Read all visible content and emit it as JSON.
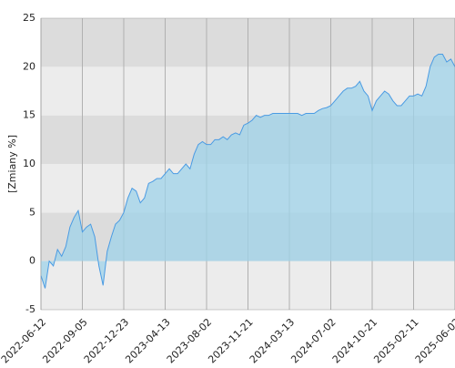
{
  "chart_data": {
    "type": "area",
    "y_label": "[Zmiany %]",
    "categories": [
      "2022-06-12",
      null,
      null,
      null,
      null,
      null,
      null,
      null,
      null,
      null,
      "2022-09-05",
      null,
      null,
      null,
      null,
      null,
      null,
      null,
      null,
      null,
      "2022-12-23",
      null,
      null,
      null,
      null,
      null,
      null,
      null,
      null,
      null,
      "2023-04-13",
      null,
      null,
      null,
      null,
      null,
      null,
      null,
      null,
      null,
      "2023-08-02",
      null,
      null,
      null,
      null,
      null,
      null,
      null,
      null,
      null,
      "2023-11-21",
      null,
      null,
      null,
      null,
      null,
      null,
      null,
      null,
      null,
      "2024-03-13",
      null,
      null,
      null,
      null,
      null,
      null,
      null,
      null,
      null,
      "2024-07-02",
      null,
      null,
      null,
      null,
      null,
      null,
      null,
      null,
      null,
      "2024-10-21",
      null,
      null,
      null,
      null,
      null,
      null,
      null,
      null,
      null,
      "2025-02-11",
      null,
      null,
      null,
      null,
      null,
      null,
      null,
      null,
      null,
      "2025-06-02"
    ],
    "values": [
      -1.5,
      -2.8,
      0,
      -0.5,
      1.2,
      0.5,
      1.5,
      3.5,
      4.5,
      5.2,
      3,
      3.5,
      3.8,
      2.5,
      -0.5,
      -2.5,
      1,
      2.5,
      3.8,
      4.2,
      5,
      6.5,
      7.5,
      7.2,
      6,
      6.5,
      8,
      8.2,
      8.5,
      8.5,
      9,
      9.5,
      9,
      9,
      9.5,
      10,
      9.5,
      11,
      12,
      12.3,
      12,
      12,
      12.5,
      12.5,
      12.8,
      12.5,
      13,
      13.2,
      13,
      14,
      14.2,
      14.5,
      15,
      14.8,
      15,
      15,
      15.2,
      15.2,
      15.2,
      15.2,
      15.2,
      15.2,
      15.2,
      15,
      15.2,
      15.2,
      15.2,
      15.5,
      15.7,
      15.8,
      16,
      16.5,
      17,
      17.5,
      17.8,
      17.8,
      18,
      18.5,
      17.5,
      17,
      15.5,
      16.5,
      17,
      17.5,
      17.2,
      16.5,
      16,
      16,
      16.5,
      17,
      17,
      17.2,
      17,
      18,
      20,
      21,
      21.3,
      21.3,
      20.5,
      20.8,
      20
    ],
    "color": "#4a9be3",
    "fill_color": "#9fd3ea",
    "band_colors": [
      "#ececec",
      "#dcdcdc"
    ],
    "ylim": [
      -5,
      25
    ],
    "yticks": [
      -5,
      0,
      5,
      10,
      15,
      20,
      25
    ],
    "grid": true
  }
}
